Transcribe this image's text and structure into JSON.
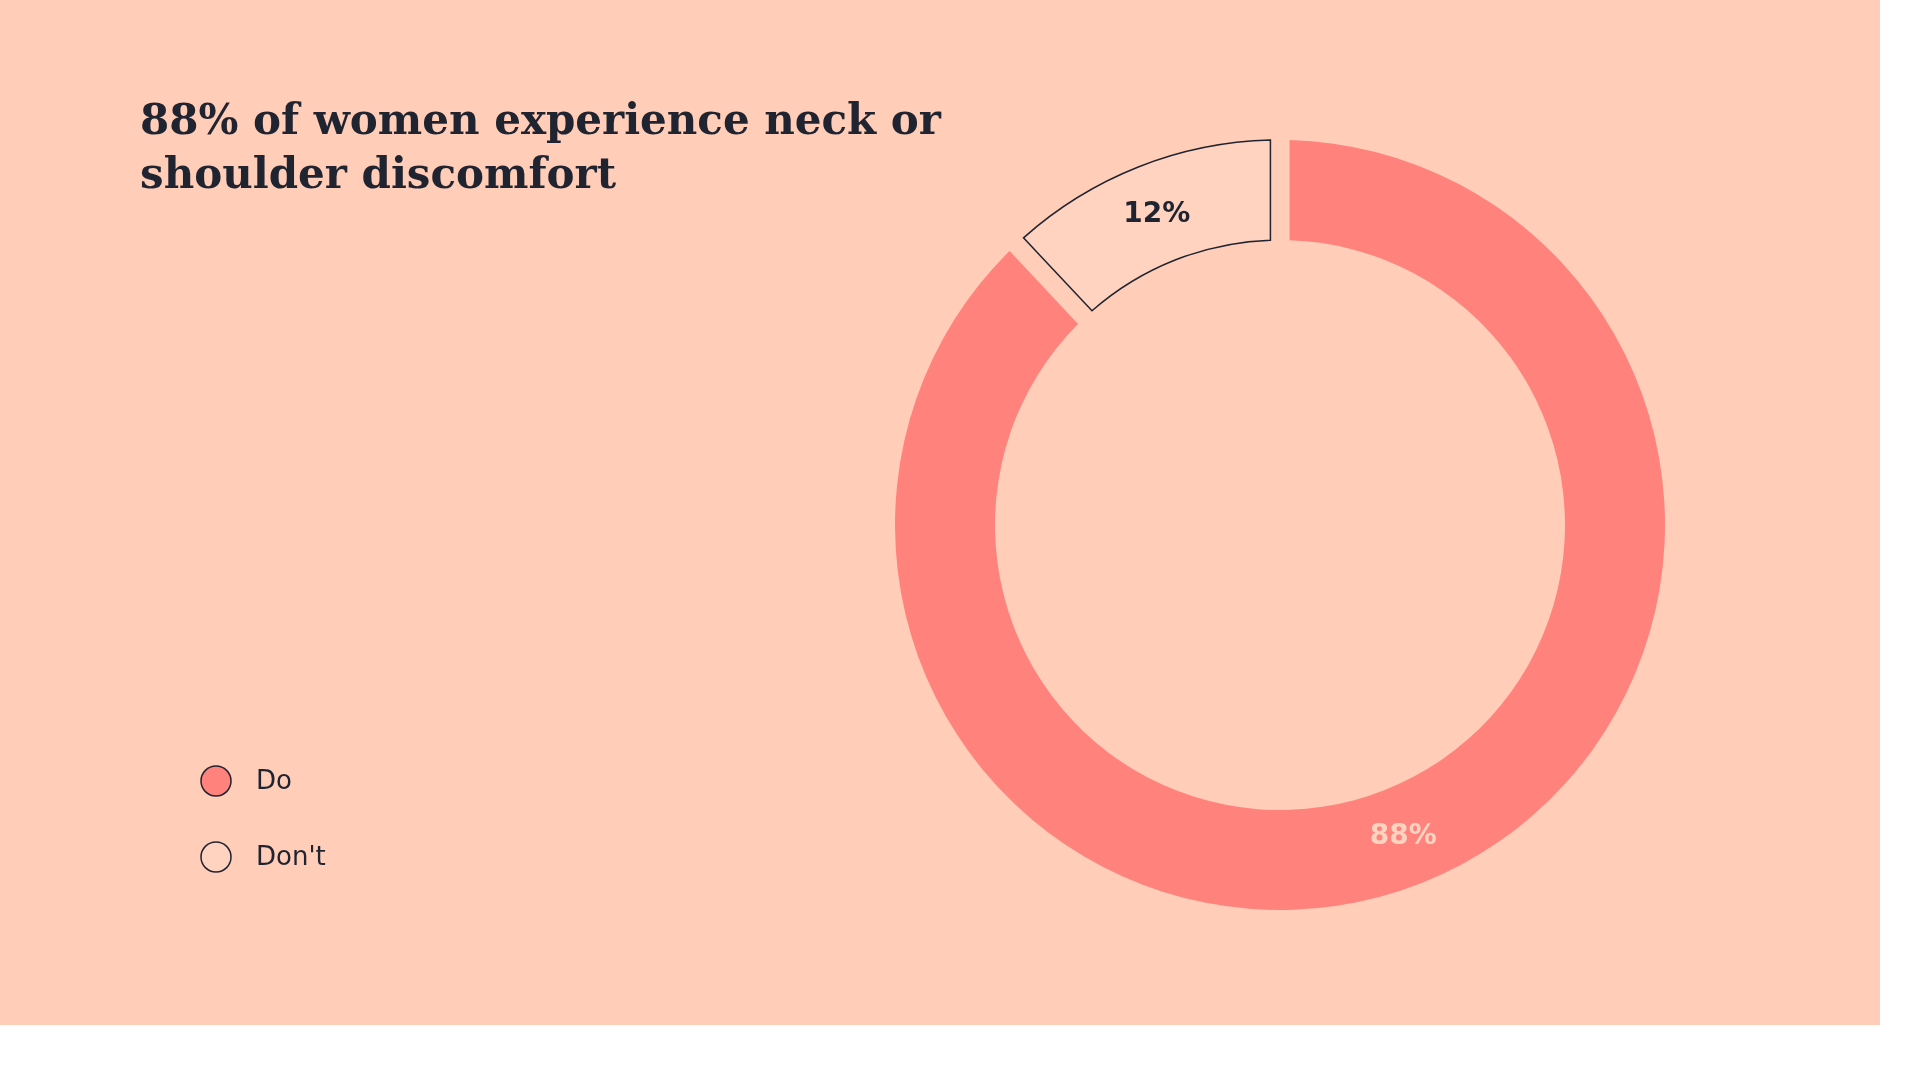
{
  "chart_data": {
    "type": "donut",
    "title": "88% of women experience neck or shoulder discomfort",
    "categories": [
      "Do",
      "Don't"
    ],
    "values": [
      88,
      12
    ],
    "colors": [
      "#ff837c",
      "#ffd3c0"
    ],
    "value_labels": [
      "88%",
      "12%"
    ],
    "legend": "bottom left"
  }
}
